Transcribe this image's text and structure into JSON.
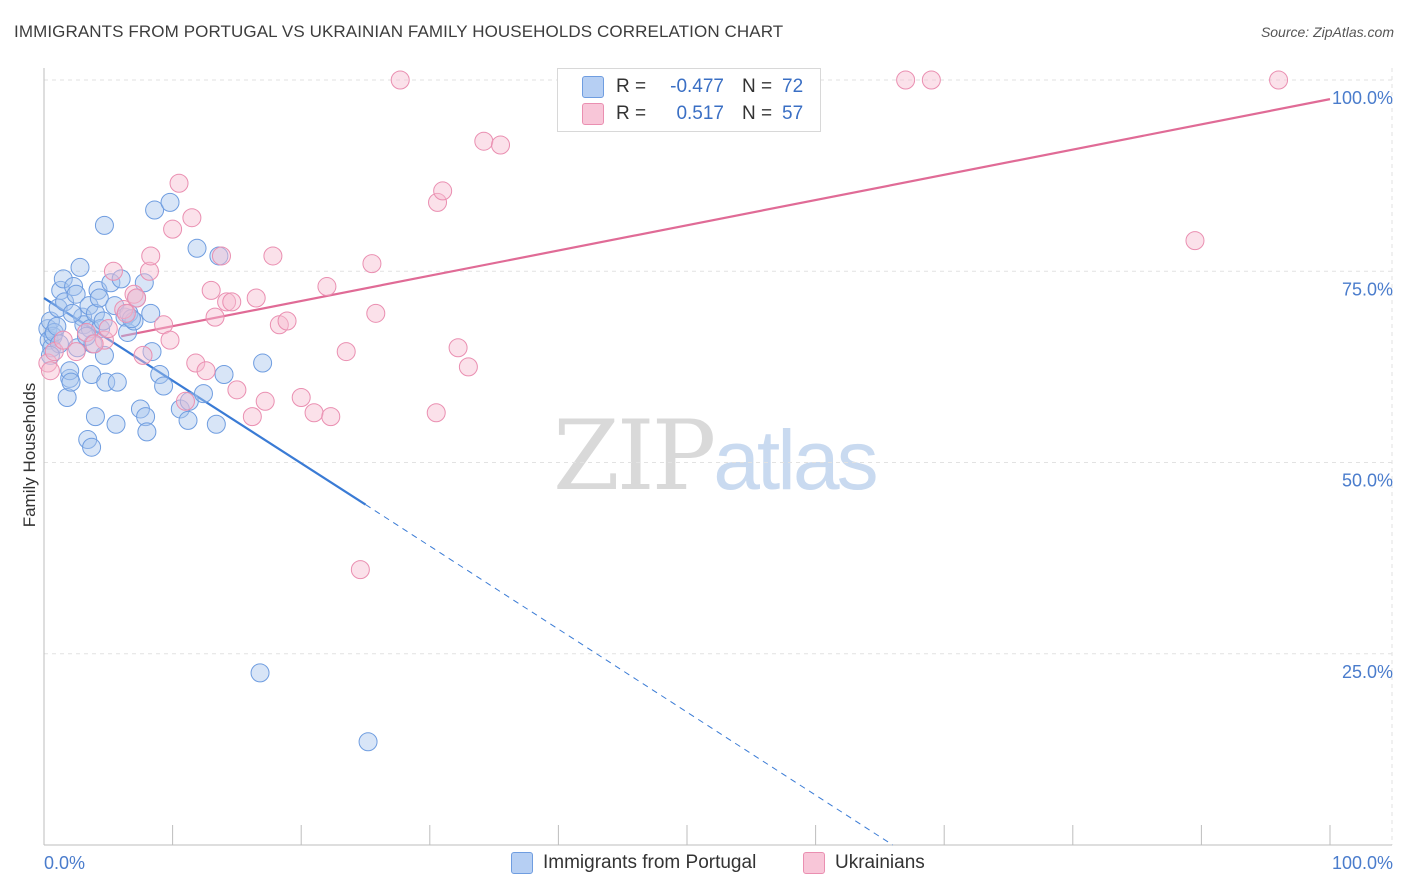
{
  "title": "IMMIGRANTS FROM PORTUGAL VS UKRAINIAN FAMILY HOUSEHOLDS CORRELATION CHART",
  "source": "Source: ZipAtlas.com",
  "colors": {
    "blue": "#3a7bd5",
    "blue_fill": "#a9c6ee",
    "pink": "#e06b96",
    "pink_fill": "#f6bcd0",
    "axis_text": "#4a7ccc"
  },
  "legend": {
    "rows": [
      {
        "r_label": "R =",
        "r_value": "-0.477",
        "n_label": "N =",
        "n_value": "72"
      },
      {
        "r_label": "R =",
        "r_value": "0.517",
        "n_label": "N =",
        "n_value": "57"
      }
    ]
  },
  "watermark": {
    "zip": "ZIP",
    "atlas": "atlas"
  },
  "chart_data": {
    "type": "scatter",
    "title": "IMMIGRANTS FROM PORTUGAL VS UKRAINIAN FAMILY HOUSEHOLDS CORRELATION CHART",
    "xlabel": "",
    "ylabel": "Family Households",
    "xlim": [
      0,
      100
    ],
    "ylim": [
      0,
      100
    ],
    "x_tick_labels": [
      "0.0%",
      "100.0%"
    ],
    "y_ticks": [
      {
        "value": 25,
        "label": "25.0%"
      },
      {
        "value": 50,
        "label": "50.0%"
      },
      {
        "value": 75,
        "label": "75.0%"
      },
      {
        "value": 100,
        "label": "100.0%"
      }
    ],
    "grid": true,
    "series": [
      {
        "name": "Immigrants from Portugal",
        "color": "blue",
        "r": -0.477,
        "n": 72,
        "trend": {
          "x0": 0,
          "y0": 71.5,
          "x1": 25,
          "y1": 44.5,
          "dash_to_x": 66,
          "dash_to_y": 0
        },
        "points": [
          [
            0.3,
            67.5
          ],
          [
            0.4,
            66
          ],
          [
            0.5,
            68.5
          ],
          [
            0.6,
            65
          ],
          [
            0.7,
            66.5
          ],
          [
            0.8,
            67
          ],
          [
            1,
            67.8
          ],
          [
            1.1,
            70.2
          ],
          [
            1.2,
            65.5
          ],
          [
            1.3,
            72.5
          ],
          [
            1.5,
            74
          ],
          [
            1.6,
            71
          ],
          [
            1.8,
            58.5
          ],
          [
            2,
            61
          ],
          [
            2,
            62
          ],
          [
            2.1,
            60.5
          ],
          [
            2.3,
            73
          ],
          [
            2.5,
            72
          ],
          [
            2.6,
            65
          ],
          [
            2.8,
            75.5
          ],
          [
            3,
            69
          ],
          [
            3.1,
            68
          ],
          [
            3.4,
            53
          ],
          [
            3.5,
            70.5
          ],
          [
            3.6,
            67.5
          ],
          [
            3.7,
            52
          ],
          [
            3.7,
            61.5
          ],
          [
            3.8,
            65.5
          ],
          [
            4,
            69.5
          ],
          [
            4,
            56
          ],
          [
            4.2,
            72.5
          ],
          [
            4.3,
            71.5
          ],
          [
            4.4,
            67.5
          ],
          [
            4.6,
            68.5
          ],
          [
            4.7,
            64
          ],
          [
            4.7,
            81
          ],
          [
            4.8,
            60.5
          ],
          [
            5.2,
            73.5
          ],
          [
            5.5,
            70.5
          ],
          [
            5.6,
            55
          ],
          [
            5.7,
            60.5
          ],
          [
            6,
            74
          ],
          [
            6.3,
            69
          ],
          [
            6.5,
            67
          ],
          [
            6.6,
            69.5
          ],
          [
            7,
            68.5
          ],
          [
            7.2,
            71.5
          ],
          [
            7.5,
            57
          ],
          [
            7.8,
            73.5
          ],
          [
            7.9,
            56
          ],
          [
            8,
            54
          ],
          [
            8.3,
            69.5
          ],
          [
            8.4,
            64.5
          ],
          [
            8.6,
            83
          ],
          [
            9,
            61.5
          ],
          [
            9.3,
            60
          ],
          [
            9.8,
            84
          ],
          [
            10.6,
            57
          ],
          [
            11.2,
            55.5
          ],
          [
            11.3,
            58
          ],
          [
            11.9,
            78
          ],
          [
            12.4,
            59
          ],
          [
            13.4,
            55
          ],
          [
            13.6,
            77
          ],
          [
            14,
            61.5
          ],
          [
            17,
            63
          ],
          [
            16.8,
            22.5
          ],
          [
            25.2,
            13.5
          ],
          [
            0.5,
            64
          ],
          [
            2.2,
            69.5
          ],
          [
            3.3,
            66.5
          ],
          [
            6.8,
            68.8
          ]
        ]
      },
      {
        "name": "Ukrainians",
        "color": "pink",
        "r": 0.517,
        "n": 57,
        "trend": {
          "x0": 6,
          "y0": 66.5,
          "x1": 100,
          "y1": 97.5
        },
        "points": [
          [
            0.3,
            63
          ],
          [
            0.5,
            62
          ],
          [
            0.8,
            64.5
          ],
          [
            1.5,
            66
          ],
          [
            2.5,
            64.5
          ],
          [
            3.3,
            67
          ],
          [
            4.7,
            66
          ],
          [
            5,
            67.5
          ],
          [
            5.4,
            75
          ],
          [
            6.2,
            70
          ],
          [
            6.4,
            69.5
          ],
          [
            7,
            72
          ],
          [
            7.2,
            71.5
          ],
          [
            8.2,
            75
          ],
          [
            8.3,
            77
          ],
          [
            9.3,
            68
          ],
          [
            10,
            80.5
          ],
          [
            10.5,
            86.5
          ],
          [
            11.5,
            82
          ],
          [
            11,
            58
          ],
          [
            11.8,
            63
          ],
          [
            12.6,
            62
          ],
          [
            13,
            72.5
          ],
          [
            13.3,
            69
          ],
          [
            13.8,
            77
          ],
          [
            14.2,
            71
          ],
          [
            14.6,
            71
          ],
          [
            15,
            59.5
          ],
          [
            16.2,
            56
          ],
          [
            16.5,
            71.5
          ],
          [
            17.2,
            58
          ],
          [
            17.8,
            77
          ],
          [
            18.3,
            68
          ],
          [
            20,
            58.5
          ],
          [
            21,
            56.5
          ],
          [
            22,
            73
          ],
          [
            22.3,
            56
          ],
          [
            23.5,
            64.5
          ],
          [
            24.6,
            36
          ],
          [
            25.5,
            76
          ],
          [
            25.8,
            69.5
          ],
          [
            27.7,
            100
          ],
          [
            30.5,
            56.5
          ],
          [
            30.6,
            84
          ],
          [
            31,
            85.5
          ],
          [
            32.2,
            65
          ],
          [
            33,
            62.5
          ],
          [
            34.2,
            92
          ],
          [
            35.5,
            91.5
          ],
          [
            67,
            100
          ],
          [
            69,
            100
          ],
          [
            89.5,
            79
          ],
          [
            96,
            100
          ],
          [
            7.7,
            64
          ],
          [
            18.9,
            68.5
          ],
          [
            3.9,
            65.5
          ],
          [
            9.8,
            66
          ]
        ]
      }
    ]
  },
  "bottom_legend": [
    {
      "label": "Immigrants from Portugal",
      "color": "blue"
    },
    {
      "label": "Ukrainians",
      "color": "pink"
    }
  ]
}
